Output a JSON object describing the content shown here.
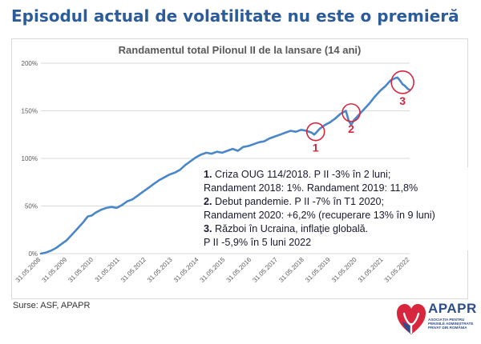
{
  "slide": {
    "title": "Episodul actual de volatilitate nu este o premieră",
    "source": "Surse: ASF, APAPR"
  },
  "annotation": {
    "lines": [
      {
        "num": "1.",
        "text": " Criza OUG 114/2018. P II -3% în 2 luni;"
      },
      {
        "num": "",
        "text": "Randament 2018: 1%. Randament 2019: 11,8%"
      },
      {
        "num": "2.",
        "text": " Debut pandemie. P II -7% în T1 2020;"
      },
      {
        "num": "",
        "text": "Randament 2020: +6,2% (recuperare 13% în 9 luni)"
      },
      {
        "num": "3.",
        "text": " Război în Ucraina, inflaţie globală."
      },
      {
        "num": "",
        "text": "P II -5,9% în 5 luni 2022"
      }
    ]
  },
  "logo": {
    "name": "APAPR",
    "subtitle": "ASOCIAȚIA PENTRU PENSIILE ADMINISTRATE PRIVAT DIN ROMÂNIA"
  },
  "colors": {
    "title": "#2d5c9a",
    "line": "#4a86c8",
    "marker": "#d7263d",
    "grid": "#d9d9d9",
    "axis_text": "#595959"
  },
  "chart_data": {
    "type": "line",
    "title": "Randamentul total Pilonul II de la lansare (14 ani)",
    "xlabel": "",
    "ylabel": "",
    "ylim": [
      0,
      200
    ],
    "grid": true,
    "y_ticks": [
      0,
      50,
      100,
      150,
      200
    ],
    "y_tick_labels": [
      "0%",
      "50%",
      "100%",
      "150%",
      "200%"
    ],
    "x_tick_labels": [
      "31.05.2008",
      "31.05.2009",
      "31.05.2010",
      "31.05.2011",
      "31.05.2012",
      "31.05.2013",
      "31.05.2014",
      "31.05.2015",
      "31.05.2016",
      "31.05.2017",
      "31.05.2018",
      "31.05.2019",
      "31.05.2020",
      "31.05.2021",
      "31.05.2022"
    ],
    "x_tick_years": [
      2008.42,
      2009.42,
      2010.42,
      2011.42,
      2012.42,
      2013.42,
      2014.42,
      2015.42,
      2016.42,
      2017.42,
      2018.42,
      2019.42,
      2020.42,
      2021.42,
      2022.42
    ],
    "xlim": [
      2008.42,
      2022.42
    ],
    "series": [
      {
        "name": "",
        "x": [
          2008.42,
          2008.6,
          2008.8,
          2009.0,
          2009.2,
          2009.4,
          2009.6,
          2009.8,
          2010.0,
          2010.2,
          2010.35,
          2010.5,
          2010.7,
          2010.9,
          2011.1,
          2011.3,
          2011.5,
          2011.7,
          2011.9,
          2012.1,
          2012.3,
          2012.5,
          2012.7,
          2012.9,
          2013.1,
          2013.3,
          2013.5,
          2013.7,
          2013.9,
          2014.1,
          2014.3,
          2014.5,
          2014.7,
          2014.9,
          2015.1,
          2015.3,
          2015.5,
          2015.7,
          2015.9,
          2016.1,
          2016.3,
          2016.5,
          2016.7,
          2016.9,
          2017.1,
          2017.3,
          2017.5,
          2017.7,
          2017.9,
          2018.1,
          2018.3,
          2018.5,
          2018.7,
          2018.8,
          2018.9,
          2019.0,
          2019.2,
          2019.4,
          2019.6,
          2019.8,
          2020.0,
          2020.1,
          2020.2,
          2020.3,
          2020.5,
          2020.7,
          2020.9,
          2021.1,
          2021.3,
          2021.5,
          2021.7,
          2021.85,
          2021.95,
          2022.05,
          2022.15,
          2022.25,
          2022.35,
          2022.42
        ],
        "values": [
          0,
          1,
          3,
          6,
          10,
          14,
          20,
          26,
          32,
          39,
          40,
          43,
          46,
          48,
          49,
          48,
          51,
          55,
          57,
          61,
          65,
          69,
          73,
          77,
          80,
          83,
          85,
          88,
          93,
          97,
          101,
          104,
          106,
          105,
          107,
          106,
          108,
          110,
          108,
          112,
          113,
          115,
          117,
          118,
          121,
          123,
          125,
          127,
          129,
          128,
          130,
          129,
          127,
          125,
          128,
          131,
          135,
          138,
          142,
          147,
          150,
          140,
          135,
          140,
          146,
          152,
          158,
          165,
          171,
          176,
          182,
          184,
          185,
          182,
          178,
          176,
          173,
          172
        ]
      }
    ],
    "markers": [
      {
        "label": "1",
        "x": 2018.85,
        "y": 128
      },
      {
        "label": "2",
        "x": 2020.2,
        "y": 148
      },
      {
        "label": "3",
        "x": 2022.15,
        "y": 180
      }
    ]
  }
}
